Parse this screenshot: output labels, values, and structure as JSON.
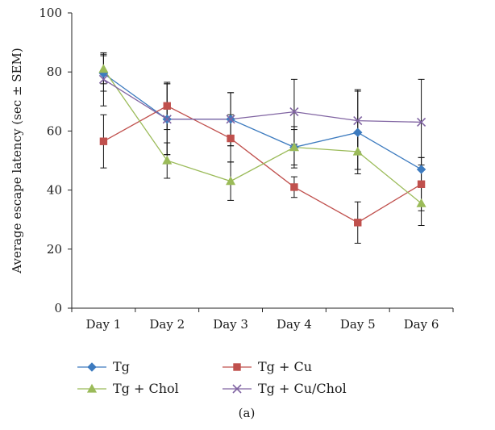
{
  "chart_data": {
    "type": "line",
    "title": "",
    "xlabel": "",
    "ylabel": "Average escape latency (sec ± SEM)",
    "ylim": [
      0,
      100
    ],
    "yticks": [
      0,
      20,
      40,
      60,
      80,
      100
    ],
    "grid": false,
    "legend_position": "bottom",
    "panel_label": "(a)",
    "categories": [
      "Day 1",
      "Day 2",
      "Day 3",
      "Day 4",
      "Day 5",
      "Day 6"
    ],
    "series": [
      {
        "name": "Tg",
        "color": "#3d7bbf",
        "marker": "diamond",
        "values": [
          79.5,
          64.0,
          64.0,
          54.5,
          59.5,
          47.0
        ],
        "error": [
          6.0,
          12.0,
          9.0,
          7.0,
          14.0,
          4.0
        ]
      },
      {
        "name": "Tg + Cu",
        "color": "#c0504d",
        "marker": "square",
        "values": [
          56.5,
          68.5,
          57.5,
          41.0,
          29.0,
          42.0
        ],
        "error": [
          9.0,
          8.0,
          8.0,
          3.5,
          7.0,
          9.0
        ]
      },
      {
        "name": "Tg + Chol",
        "color": "#9bbb59",
        "marker": "triangle",
        "values": [
          81.0,
          50.0,
          43.0,
          54.5,
          53.0,
          35.5
        ],
        "error": [
          5.0,
          6.0,
          6.5,
          6.0,
          6.0,
          7.5
        ]
      },
      {
        "name": "Tg + Cu/Chol",
        "color": "#8064a2",
        "marker": "x",
        "values": [
          77.5,
          64.0,
          64.0,
          66.5,
          63.5,
          63.0
        ],
        "error": [
          9.0,
          12.0,
          9.0,
          11.0,
          10.5,
          14.5
        ]
      }
    ]
  }
}
